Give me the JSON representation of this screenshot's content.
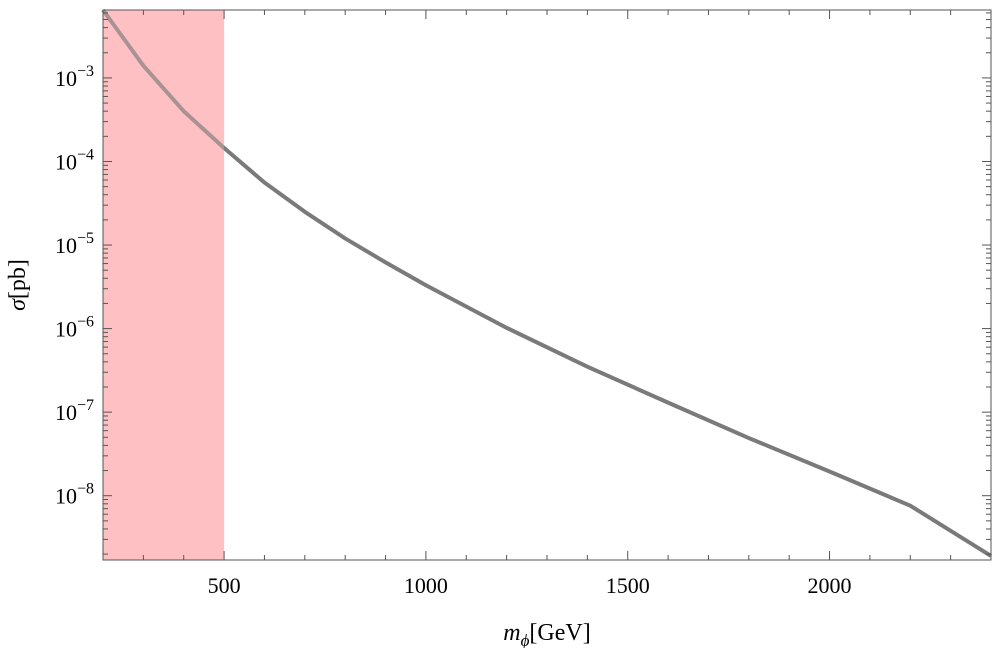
{
  "chart_data": {
    "type": "line",
    "title": "",
    "xlabel": {
      "symbol": "m",
      "subscript": "ϕ",
      "unit": "[GeV]"
    },
    "ylabel": {
      "symbol": "σ",
      "unit": "[pb]"
    },
    "x_scale": "linear",
    "y_scale": "log",
    "xlim": [
      200,
      2400
    ],
    "ylim": [
      1.7e-09,
      0.0065
    ],
    "x_ticks": [
      {
        "value": 500,
        "label": "500"
      },
      {
        "value": 1000,
        "label": "1000"
      },
      {
        "value": 1500,
        "label": "1500"
      },
      {
        "value": 2000,
        "label": "2000"
      }
    ],
    "y_ticks": [
      {
        "exp": -3,
        "base": "10",
        "sup": "−3"
      },
      {
        "exp": -4,
        "base": "10",
        "sup": "−4"
      },
      {
        "exp": -5,
        "base": "10",
        "sup": "−5"
      },
      {
        "exp": -6,
        "base": "10",
        "sup": "−6"
      },
      {
        "exp": -7,
        "base": "10",
        "sup": "−7"
      },
      {
        "exp": -8,
        "base": "10",
        "sup": "−8"
      }
    ],
    "grid": false,
    "frame": true,
    "excluded_region": {
      "x_range": [
        200,
        500
      ],
      "color": "#ffc0c4"
    },
    "series": [
      {
        "color": "#7a7a7a",
        "x": [
          200,
          300,
          400,
          500,
          600,
          700,
          800,
          900,
          1000,
          1200,
          1400,
          1600,
          1800,
          2000,
          2200,
          2400
        ],
        "y": [
          0.0065,
          0.0014,
          0.0004,
          0.000145,
          5.6e-05,
          2.5e-05,
          1.2e-05,
          6.2e-06,
          3.3e-06,
          1.02e-06,
          3.5e-07,
          1.3e-07,
          4.9e-08,
          1.95e-08,
          7.6e-09,
          1.9e-09
        ]
      }
    ]
  }
}
